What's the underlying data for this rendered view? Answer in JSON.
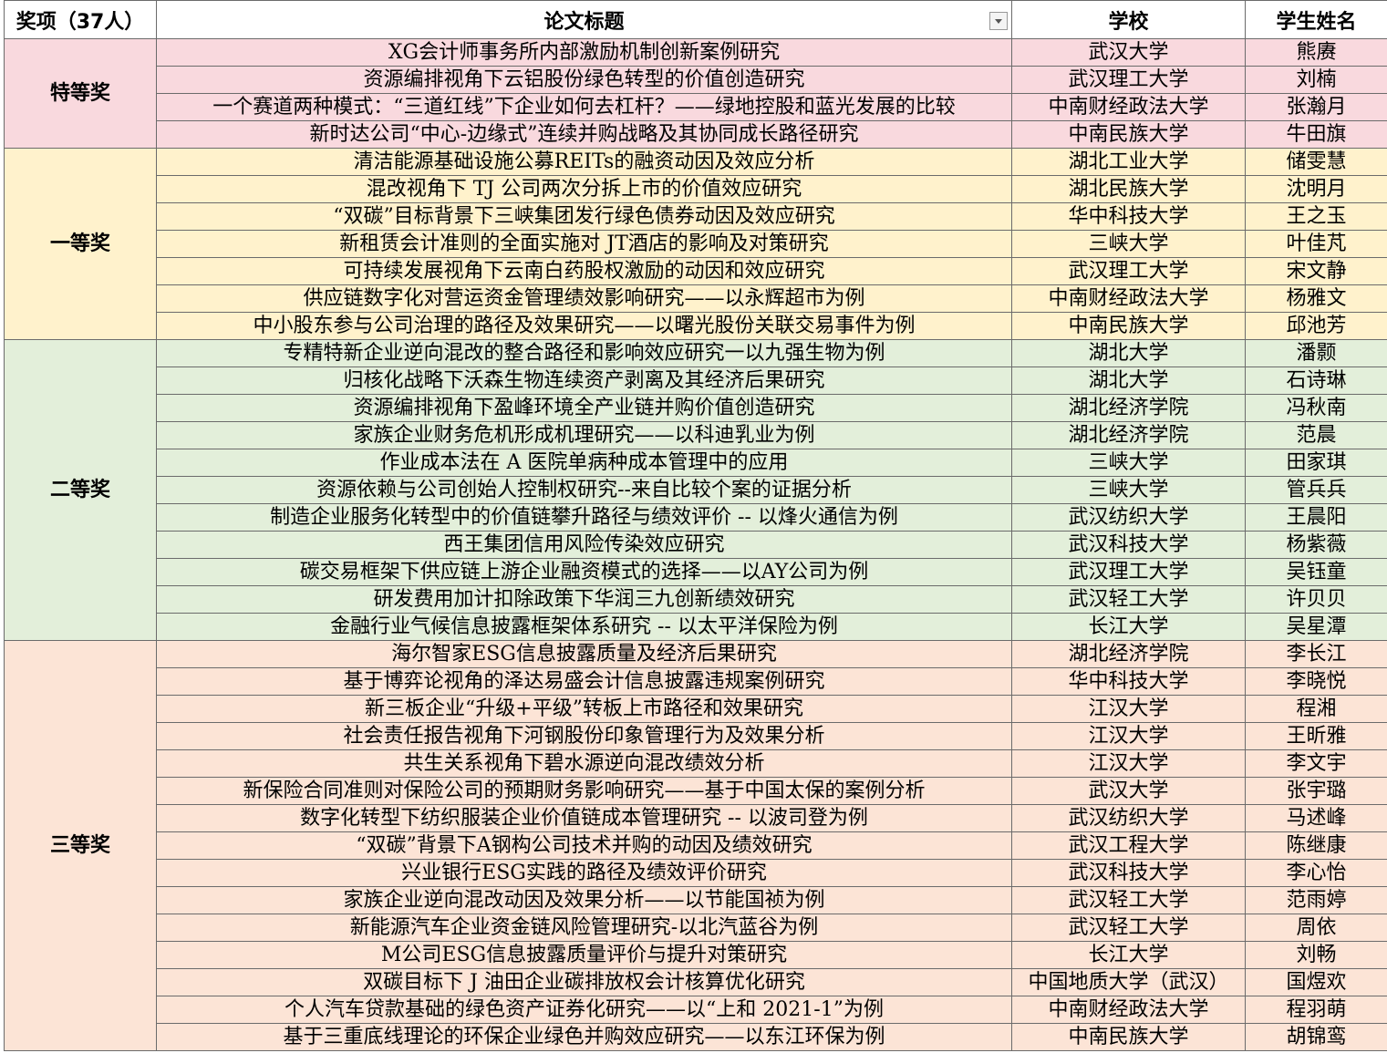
{
  "header": [
    "奖项（37人）",
    "论文标题",
    "学校",
    "学生姓名"
  ],
  "groups": [
    {
      "award": "特等奖",
      "rows": [
        [
          "XG会计师事务所内部激励机制创新案例研究",
          "武汉大学",
          "熊赓"
        ],
        [
          "资源编排视角下云铝股份绿色转型的价值创造研究",
          "武汉理工大学",
          "刘楠"
        ],
        [
          "一个赛道两种模式：“三道红线”下企业如何去杠杆？——绿地控股和蓝光发展的比较",
          "中南财经政法大学",
          "张瀚月"
        ],
        [
          "新时达公司“中心-边缘式”连续并购战略及其协同成长路径研究",
          "中南民族大学",
          "牛田旗"
        ]
      ]
    },
    {
      "award": "一等奖",
      "rows": [
        [
          "清洁能源基础设施公募REITs的融资动因及效应分析",
          "湖北工业大学",
          "储雯慧"
        ],
        [
          "混改视角下 TJ 公司两次分拆上市的价值效应研究",
          "湖北民族大学",
          "沈明月"
        ],
        [
          "“双碳”目标背景下三峡集团发行绿色债券动因及效应研究",
          "华中科技大学",
          "王之玉"
        ],
        [
          "新租赁会计准则的全面实施对 JT酒店的影响及对策研究",
          "三峡大学",
          "叶佳芃"
        ],
        [
          "可持续发展视角下云南白药股权激励的动因和效应研究",
          "武汉理工大学",
          "宋文静"
        ],
        [
          "供应链数字化对营运资金管理绩效影响研究——以永辉超市为例",
          "中南财经政法大学",
          "杨雅文"
        ],
        [
          "中小股东参与公司治理的路径及效果研究——以曙光股份关联交易事件为例",
          "中南民族大学",
          "邱池芳"
        ]
      ]
    },
    {
      "award": "二等奖",
      "rows": [
        [
          "专精特新企业逆向混改的整合路径和影响效应研究一以九强生物为例",
          "湖北大学",
          "潘颢"
        ],
        [
          "归核化战略下沃森生物连续资产剥离及其经济后果研究",
          "湖北大学",
          "石诗琳"
        ],
        [
          "资源编排视角下盈峰环境全产业链并购价值创造研究",
          "湖北经济学院",
          "冯秋南"
        ],
        [
          "家族企业财务危机形成机理研究——以科迪乳业为例",
          "湖北经济学院",
          "范晨"
        ],
        [
          "作业成本法在 A 医院单病种成本管理中的应用",
          "三峡大学",
          "田家琪"
        ],
        [
          "资源依赖与公司创始人控制权研究--来自比较个案的证据分析",
          "三峡大学",
          "管兵兵"
        ],
        [
          "制造企业服务化转型中的价值链攀升路径与绩效评价 -- 以烽火通信为例",
          "武汉纺织大学",
          "王晨阳"
        ],
        [
          "西王集团信用风险传染效应研究",
          "武汉科技大学",
          "杨紫薇"
        ],
        [
          "碳交易框架下供应链上游企业融资模式的选择——以AY公司为例",
          "武汉理工大学",
          "吴钰童"
        ],
        [
          "研发费用加计扣除政策下华润三九创新绩效研究",
          "武汉轻工大学",
          "许贝贝"
        ],
        [
          "金融行业气候信息披露框架体系研究 -- 以太平洋保险为例",
          "长江大学",
          "吴星潭"
        ]
      ]
    },
    {
      "award": "三等奖",
      "rows": [
        [
          "海尔智家ESG信息披露质量及经济后果研究",
          "湖北经济学院",
          "李长江"
        ],
        [
          "基于博弈论视角的泽达易盛会计信息披露违规案例研究",
          "华中科技大学",
          "李晓悦"
        ],
        [
          "新三板企业“升级+平级”转板上市路径和效果研究",
          "江汉大学",
          "程湘"
        ],
        [
          "社会责任报告视角下河钢股份印象管理行为及效果分析",
          "江汉大学",
          "王昕雅"
        ],
        [
          "共生关系视角下碧水源逆向混改绩效分析",
          "江汉大学",
          "李文宇"
        ],
        [
          "新保险合同准则对保险公司的预期财务影响研究——基于中国太保的案例分析",
          "武汉大学",
          "张宇璐"
        ],
        [
          "数字化转型下纺织服装企业价值链成本管理研究 -- 以波司登为例",
          "武汉纺织大学",
          "马述峰"
        ],
        [
          "“双碳”背景下A钢构公司技术并购的动因及绩效研究",
          "武汉工程大学",
          "陈继康"
        ],
        [
          "兴业银行ESG实践的路径及绩效评价研究",
          "武汉科技大学",
          "李心怡"
        ],
        [
          "家族企业逆向混改动因及效果分析——以节能国祯为例",
          "武汉轻工大学",
          "范雨婷"
        ],
        [
          "新能源汽车企业资金链风险管理研究-以北汽蓝谷为例",
          "武汉轻工大学",
          "周依"
        ],
        [
          "M公司ESG信息披露质量评价与提升对策研究",
          "长江大学",
          "刘畅"
        ],
        [
          "双碳目标下 J 油田企业碳排放权会计核算优化研究",
          "中国地质大学（武汉）",
          "国煜欢"
        ],
        [
          "个人汽车贷款基础的绿色资产证券化研究——以“上和 2021-1”为例",
          "中南财经政法大学",
          "程羽萌"
        ],
        [
          "基于三重底线理论的环保企业绿色并购效应研究——以东江环保为例",
          "中南民族大学",
          "胡锦鸾"
        ]
      ]
    }
  ]
}
